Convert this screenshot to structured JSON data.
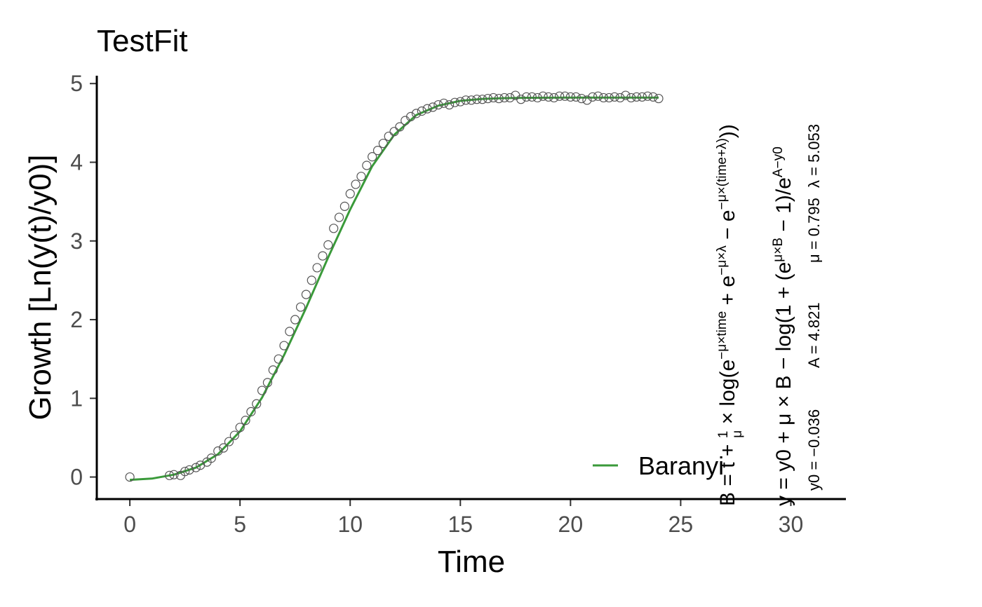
{
  "chart_data": {
    "type": "scatter",
    "title": "TestFit",
    "xlabel": "Time",
    "ylabel": "Growth [Ln(y(t)/y0)]",
    "xlim": [
      -1.5,
      32.5
    ],
    "ylim": [
      -0.28,
      5.1
    ],
    "xticks": [
      0,
      5,
      10,
      15,
      20,
      25,
      30
    ],
    "yticks": [
      0,
      1,
      2,
      3,
      4,
      5
    ],
    "grid": false,
    "legend": {
      "position": "bottom-right",
      "entries": [
        "Baranyi"
      ]
    },
    "colors": {
      "fit": "#3a9a3a",
      "points": "#555555"
    },
    "observed": {
      "x": [
        0.0,
        1.8,
        2.0,
        2.3,
        2.5,
        2.7,
        3.0,
        3.2,
        3.5,
        3.7,
        4.0,
        4.25,
        4.5,
        4.75,
        5.0,
        5.25,
        5.5,
        5.75,
        6.0,
        6.25,
        6.5,
        6.75,
        7.0,
        7.25,
        7.5,
        7.75,
        8.0,
        8.25,
        8.5,
        8.75,
        9.0,
        9.25,
        9.5,
        9.75,
        10.0,
        10.25,
        10.5,
        10.75,
        11.0,
        11.25,
        11.5,
        11.75,
        12.0,
        12.25,
        12.5,
        12.75,
        13.0,
        13.25,
        13.5,
        13.75,
        14.0,
        14.25,
        14.5,
        14.75,
        15.0,
        15.25,
        15.5,
        15.75,
        16.0,
        16.25,
        16.5,
        16.75,
        17.0,
        17.25,
        17.5,
        17.75,
        18.0,
        18.25,
        18.5,
        18.75,
        19.0,
        19.25,
        19.5,
        19.75,
        20.0,
        20.25,
        20.5,
        20.75,
        21.0,
        21.25,
        21.5,
        21.75,
        22.0,
        22.25,
        22.5,
        22.75,
        23.0,
        23.25,
        23.5,
        23.75,
        24.0
      ],
      "y": [
        0.0,
        0.02,
        0.03,
        0.02,
        0.07,
        0.09,
        0.12,
        0.15,
        0.19,
        0.24,
        0.33,
        0.37,
        0.45,
        0.53,
        0.63,
        0.72,
        0.83,
        0.93,
        1.1,
        1.2,
        1.36,
        1.5,
        1.67,
        1.85,
        2.0,
        2.16,
        2.32,
        2.5,
        2.66,
        2.81,
        2.95,
        3.16,
        3.3,
        3.44,
        3.6,
        3.72,
        3.82,
        3.96,
        4.07,
        4.15,
        4.24,
        4.33,
        4.39,
        4.45,
        4.53,
        4.58,
        4.62,
        4.65,
        4.68,
        4.7,
        4.73,
        4.75,
        4.73,
        4.76,
        4.77,
        4.79,
        4.79,
        4.8,
        4.8,
        4.81,
        4.82,
        4.81,
        4.82,
        4.82,
        4.85,
        4.8,
        4.83,
        4.83,
        4.82,
        4.84,
        4.83,
        4.82,
        4.84,
        4.84,
        4.83,
        4.83,
        4.81,
        4.79,
        4.83,
        4.84,
        4.82,
        4.82,
        4.83,
        4.82,
        4.85,
        4.82,
        4.83,
        4.83,
        4.84,
        4.83,
        4.81
      ]
    },
    "series": [
      {
        "name": "Baranyi",
        "x": [
          0,
          1,
          2,
          3,
          4,
          5,
          6,
          7,
          8,
          9,
          10,
          11,
          12,
          13,
          14,
          15,
          16,
          17,
          18,
          19,
          20,
          21,
          22,
          23,
          24
        ],
        "y": [
          -0.036,
          -0.02,
          0.03,
          0.12,
          0.29,
          0.58,
          1.01,
          1.55,
          2.15,
          2.79,
          3.4,
          3.95,
          4.35,
          4.6,
          4.72,
          4.78,
          4.805,
          4.815,
          4.819,
          4.82,
          4.821,
          4.821,
          4.821,
          4.821,
          4.821
        ]
      }
    ],
    "annotations": {
      "model_equation": "y = y0 + μ × B − log(1 + (e^(μ×B) − 1)/e^(A−y0))",
      "b_equation": "B = t + (1/μ) × log(e^(−μ×time) + e^(−μ×λ) − e^(−μ×(time+λ)))",
      "parameters": {
        "y0": "y0 = −0.036",
        "A": "A = 4.821",
        "mu": "μ = 0.795",
        "lambda": "λ = 5.053"
      }
    }
  }
}
